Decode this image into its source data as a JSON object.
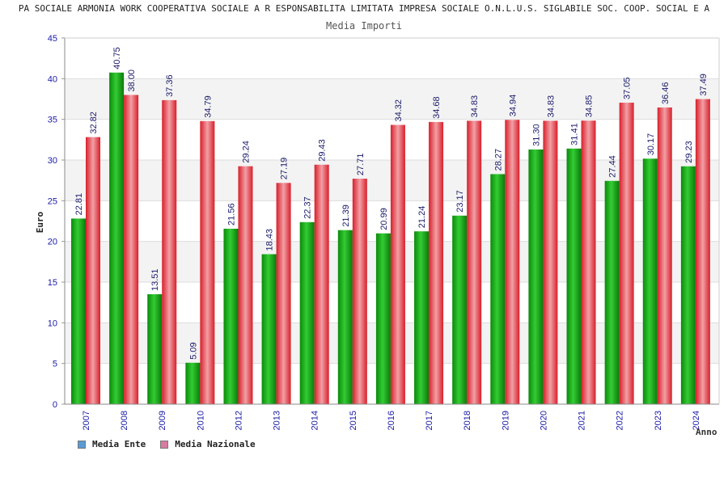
{
  "chart_data": {
    "type": "bar",
    "title": "PA SOCIALE ARMONIA WORK COOPERATIVA SOCIALE A R ESPONSABILITA LIMITATA IMPRESA SOCIALE O.N.L.U.S. SIGLABILE SOC. COOP. SOCIAL E A",
    "subtitle": "Media Importi",
    "xlabel": "Anno",
    "ylabel": "Euro",
    "ylim": [
      0,
      45
    ],
    "yticks": [
      0,
      5,
      10,
      15,
      20,
      25,
      30,
      35,
      40,
      45
    ],
    "grid": true,
    "legend_position": "bottom-left",
    "categories": [
      "2007",
      "2008",
      "2009",
      "2010",
      "2012",
      "2013",
      "2014",
      "2015",
      "2016",
      "2017",
      "2018",
      "2019",
      "2020",
      "2021",
      "2022",
      "2023",
      "2024"
    ],
    "series": [
      {
        "name": "Media Ente",
        "color": "#1fae1f",
        "legend_color": "#5b9bd5",
        "values": [
          22.81,
          40.75,
          13.51,
          5.09,
          21.56,
          18.43,
          22.37,
          21.39,
          20.99,
          21.24,
          23.17,
          28.27,
          31.3,
          31.41,
          27.44,
          30.17,
          29.23
        ],
        "labels": [
          "22.81",
          "40.75",
          "13.51",
          "5.09",
          "21.56",
          "18.43",
          "22.37",
          "21.39",
          "20.99",
          "21.24",
          "23.17",
          "28.27",
          "31.30",
          "31.41",
          "27.44",
          "30.17",
          "29.23"
        ]
      },
      {
        "name": "Media Nazionale",
        "color": "#e8303a",
        "legend_color": "#d97aa0",
        "values": [
          32.82,
          38.0,
          37.36,
          34.79,
          29.24,
          27.19,
          29.43,
          27.71,
          34.32,
          34.68,
          34.83,
          34.94,
          34.83,
          34.85,
          37.05,
          36.46,
          37.49
        ],
        "labels": [
          "32.82",
          "38.00",
          "37.36",
          "34.79",
          "29.24",
          "27.19",
          "29.43",
          "27.71",
          "34.32",
          "34.68",
          "34.83",
          "34.94",
          "34.83",
          "34.85",
          "37.05",
          "36.46",
          "37.49"
        ]
      }
    ]
  }
}
